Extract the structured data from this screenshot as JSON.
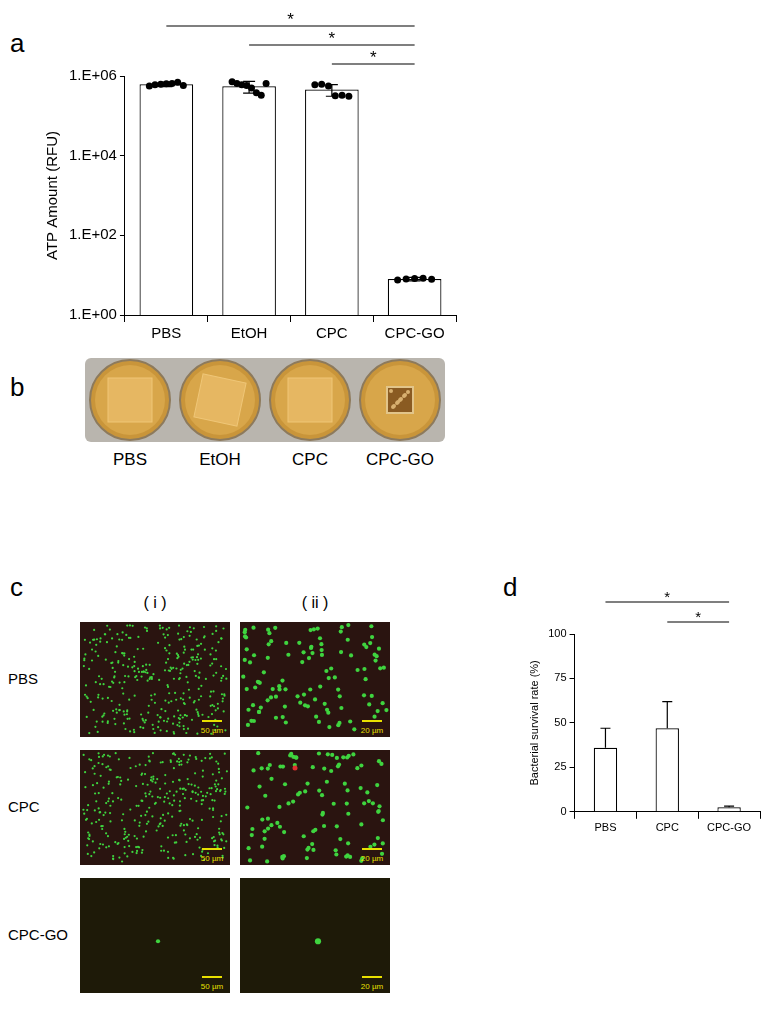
{
  "chart_data": [
    {
      "panel": "a",
      "type": "bar",
      "ylabel": "ATP Amount (RFU)",
      "categories": [
        "PBS",
        "EtOH",
        "CPC",
        "CPC-GO"
      ],
      "values": [
        620000,
        550000,
        460000,
        8
      ],
      "errors": [
        80000,
        180000,
        150000,
        0.8
      ],
      "points": [
        [
          560000,
          600000,
          620000,
          640000,
          650000,
          700000,
          580000
        ],
        [
          720000,
          650000,
          600000,
          580000,
          500000,
          380000,
          330000,
          650000
        ],
        [
          600000,
          620000,
          560000,
          320000,
          330000,
          310000
        ],
        [
          7.6,
          8.0,
          8.2,
          8.4,
          7.9
        ]
      ],
      "color": "#ffffff",
      "log": "y",
      "grid": false,
      "ylim": [
        1,
        1000000
      ],
      "yticks": [
        {
          "value": 1,
          "label": "1.E+00"
        },
        {
          "value": 100,
          "label": "1.E+02"
        },
        {
          "value": 10000,
          "label": "1.E+04"
        },
        {
          "value": 1000000,
          "label": "1.E+06"
        }
      ],
      "annotations": [
        {
          "text": "*",
          "from": "PBS",
          "to": "CPC-GO"
        },
        {
          "text": "*",
          "from": "EtOH",
          "to": "CPC-GO"
        },
        {
          "text": "*",
          "from": "CPC",
          "to": "CPC-GO"
        }
      ]
    },
    {
      "panel": "d",
      "type": "bar",
      "ylabel": "Bacterial survival rate (%)",
      "categories": [
        "PBS",
        "CPC",
        "CPC-GO"
      ],
      "values": [
        36,
        47,
        2.5
      ],
      "errors": [
        11,
        15,
        0.7
      ],
      "color": "#ffffff",
      "grid": false,
      "ylim": [
        0,
        100
      ],
      "yticks": [
        0,
        25,
        50,
        75,
        100
      ],
      "annotations": [
        {
          "text": "*",
          "from": "PBS",
          "to": "CPC-GO"
        },
        {
          "text": "*",
          "from": "CPC",
          "to": "CPC-GO"
        }
      ]
    }
  ],
  "panel_b": {
    "panel": "b",
    "labels": [
      "PBS",
      "EtOH",
      "CPC",
      "CPC-GO"
    ]
  },
  "panel_c": {
    "panel": "c",
    "columns": [
      "( i )",
      "( ii )"
    ],
    "rows": [
      "PBS",
      "CPC",
      "CPC-GO"
    ],
    "scale_bars": [
      "50 µm",
      "20 µm"
    ]
  }
}
